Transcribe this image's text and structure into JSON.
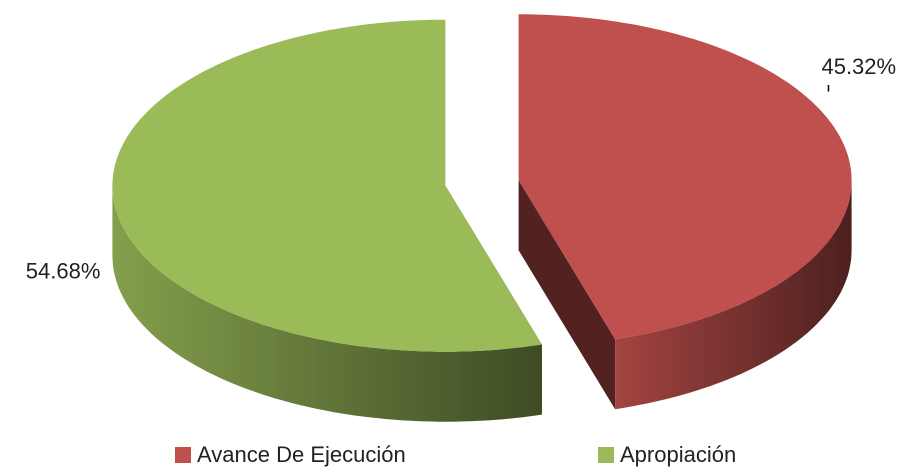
{
  "chart_data": {
    "type": "pie3d",
    "categories": [
      "Avance De Ejecución",
      "Apropiación"
    ],
    "values": [
      45.32,
      54.68
    ],
    "value_labels": [
      "45.32%",
      "54.68%"
    ],
    "colors": [
      "#c0504d",
      "#9bbb59"
    ],
    "legend": "bottom"
  }
}
